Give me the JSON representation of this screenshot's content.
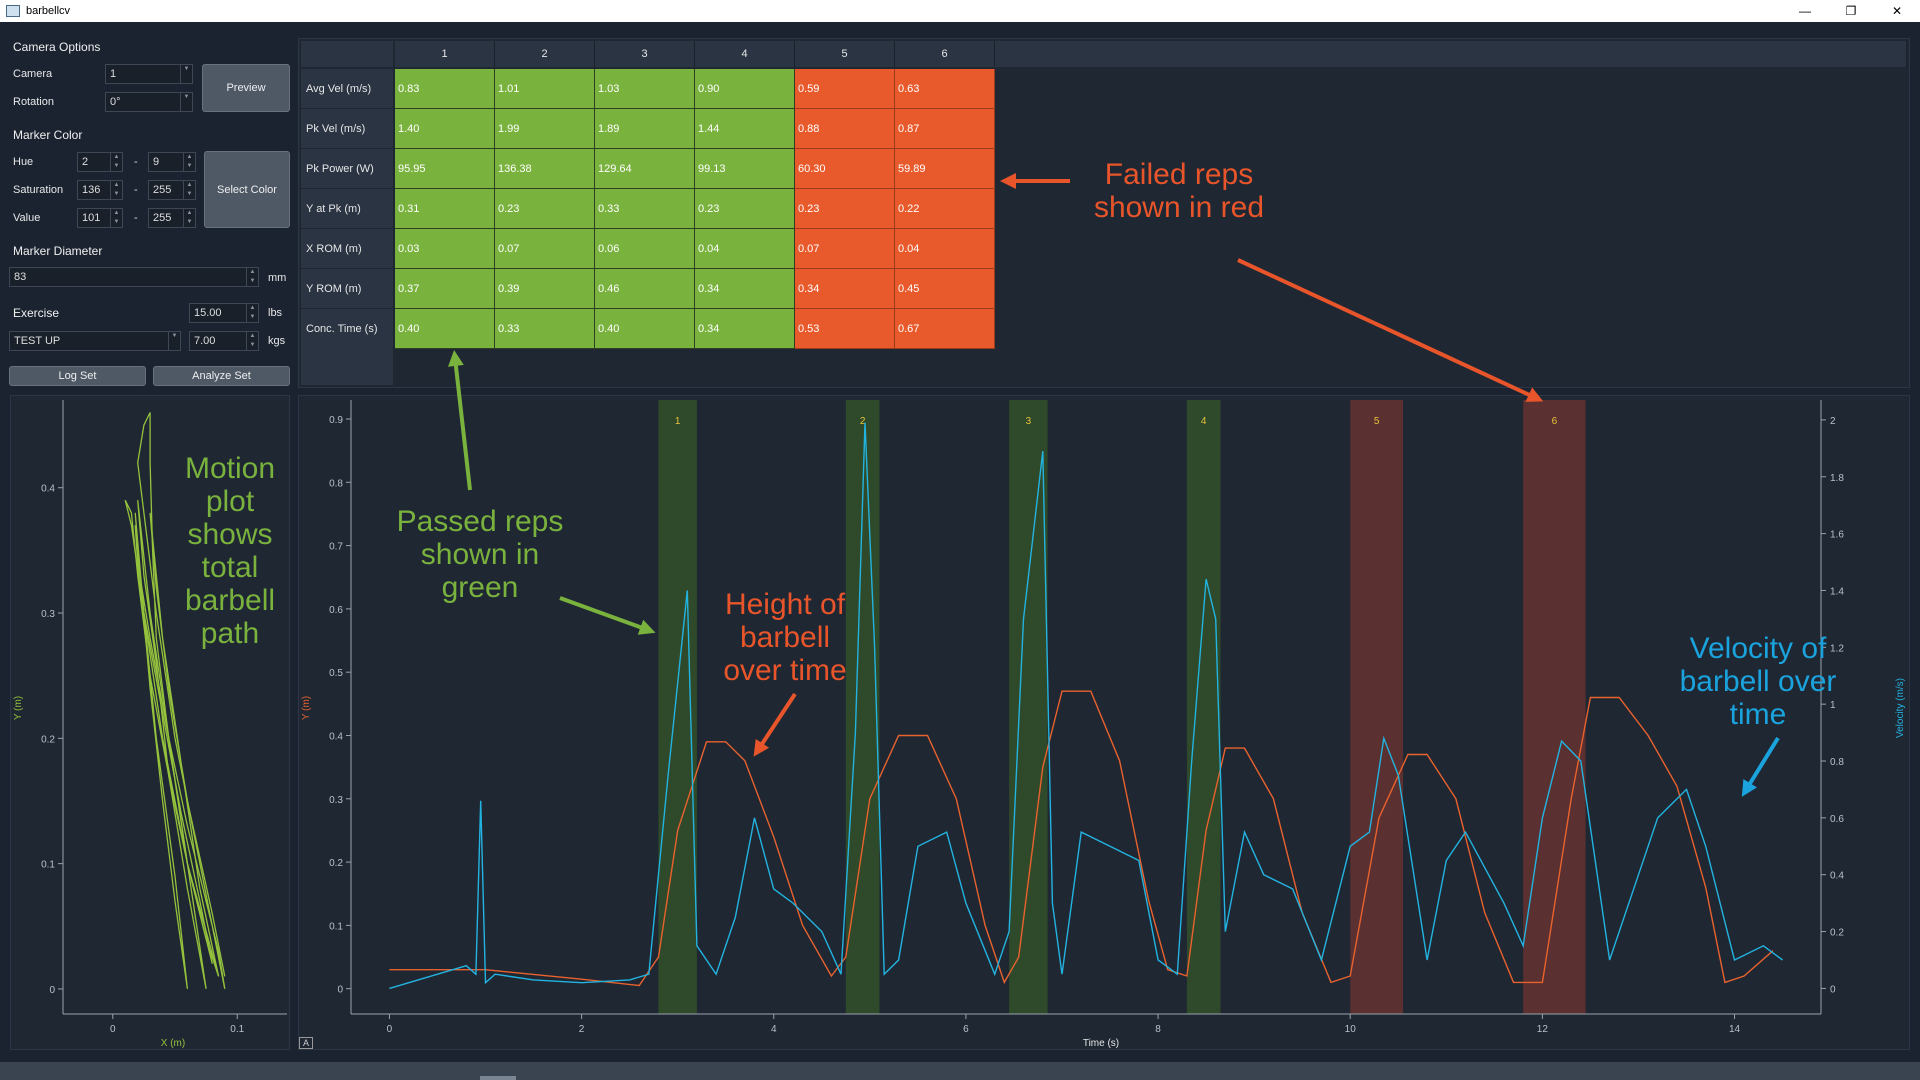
{
  "window": {
    "title": "barbellcv",
    "controls": [
      "—",
      "❐",
      "✕"
    ]
  },
  "camera_options": {
    "section": "Camera Options",
    "camera_label": "Camera",
    "camera_value": "1",
    "rotation_label": "Rotation",
    "rotation_value": "0°",
    "preview_button": "Preview"
  },
  "marker_color": {
    "section": "Marker Color",
    "hue_label": "Hue",
    "hue_min": "2",
    "hue_max": "9",
    "saturation_label": "Saturation",
    "sat_min": "136",
    "sat_max": "255",
    "value_label": "Value",
    "val_min": "101",
    "val_max": "255",
    "dash": "-",
    "select_button": "Select Color"
  },
  "marker_diameter": {
    "section": "Marker Diameter",
    "value": "83",
    "unit": "mm"
  },
  "exercise": {
    "section": "Exercise",
    "selected": "TEST UP",
    "lbs_value": "15.00",
    "lbs_unit": "lbs",
    "kgs_value": "7.00",
    "kgs_unit": "kgs"
  },
  "actions": {
    "log_set": "Log Set",
    "analyze_set": "Analyze Set"
  },
  "rep_table": {
    "columns": [
      "1",
      "2",
      "3",
      "4",
      "5",
      "6"
    ],
    "status": [
      "pass",
      "pass",
      "pass",
      "pass",
      "fail",
      "fail"
    ],
    "rows": [
      {
        "label": "Avg Vel (m/s)",
        "values": [
          "0.83",
          "1.01",
          "1.03",
          "0.90",
          "0.59",
          "0.63"
        ]
      },
      {
        "label": "Pk Vel (m/s)",
        "values": [
          "1.40",
          "1.99",
          "1.89",
          "1.44",
          "0.88",
          "0.87"
        ]
      },
      {
        "label": "Pk Power (W)",
        "values": [
          "95.95",
          "136.38",
          "129.64",
          "99.13",
          "60.30",
          "59.89"
        ]
      },
      {
        "label": "Y at Pk (m)",
        "values": [
          "0.31",
          "0.23",
          "0.33",
          "0.23",
          "0.23",
          "0.22"
        ]
      },
      {
        "label": "X ROM (m)",
        "values": [
          "0.03",
          "0.07",
          "0.06",
          "0.04",
          "0.07",
          "0.04"
        ]
      },
      {
        "label": "Y ROM (m)",
        "values": [
          "0.37",
          "0.39",
          "0.46",
          "0.34",
          "0.34",
          "0.45"
        ]
      },
      {
        "label": "Conc. Time (s)",
        "values": [
          "0.40",
          "0.33",
          "0.40",
          "0.34",
          "0.53",
          "0.67"
        ]
      }
    ]
  },
  "colors": {
    "pass": "#7ab23e",
    "fail": "#e85a2c",
    "height_line": "#e8622e",
    "velocity_line": "#23b3e0",
    "motion_line": "#94c23c",
    "pass_band": "#2f4a2a",
    "fail_band": "#5a3030",
    "rep_label": "#e8c23c",
    "anno_green": "#7ab23e",
    "anno_red": "#e8552a",
    "anno_blue": "#1aa3dc"
  },
  "annotations": {
    "failed": "Failed reps shown in red",
    "passed": "Passed reps shown in green",
    "height": "Height of barbell over time",
    "velocity": "Velocity of barbell over time",
    "motion": "Motion plot shows total barbell path"
  },
  "chart_data": [
    {
      "type": "line",
      "name": "motion-plot",
      "xlabel": "X (m)",
      "ylabel": "Y (m)",
      "xlim": [
        -0.04,
        0.14
      ],
      "ylim": [
        -0.02,
        0.47
      ],
      "xticks": [
        0,
        0.1
      ],
      "yticks": [
        0,
        0.1,
        0.2,
        0.3,
        0.4
      ],
      "series": [
        {
          "x": [
            0.09,
            0.07,
            0.05,
            0.035,
            0.025,
            0.02,
            0.025,
            0.03,
            0.03,
            0.032,
            0.035,
            0.045,
            0.06,
            0.075,
            0.085,
            0.09
          ],
          "y": [
            0.0,
            0.1,
            0.2,
            0.3,
            0.38,
            0.42,
            0.45,
            0.46,
            0.42,
            0.35,
            0.28,
            0.2,
            0.13,
            0.07,
            0.03,
            0.0
          ]
        },
        {
          "x": [
            0.085,
            0.06,
            0.04,
            0.025,
            0.015,
            0.01,
            0.015,
            0.02,
            0.03,
            0.045,
            0.06,
            0.075,
            0.085
          ],
          "y": [
            0.01,
            0.1,
            0.2,
            0.3,
            0.37,
            0.39,
            0.38,
            0.33,
            0.25,
            0.17,
            0.1,
            0.04,
            0.01
          ]
        },
        {
          "x": [
            0.08,
            0.06,
            0.045,
            0.03,
            0.02,
            0.018,
            0.025,
            0.04,
            0.055,
            0.07,
            0.08
          ],
          "y": [
            0.02,
            0.1,
            0.2,
            0.28,
            0.34,
            0.37,
            0.3,
            0.22,
            0.14,
            0.07,
            0.02
          ]
        },
        {
          "x": [
            0.075,
            0.06,
            0.045,
            0.035,
            0.025,
            0.02,
            0.03,
            0.045,
            0.06,
            0.075
          ],
          "y": [
            0.0,
            0.08,
            0.17,
            0.26,
            0.33,
            0.39,
            0.3,
            0.2,
            0.1,
            0.0
          ]
        },
        {
          "x": [
            0.09,
            0.08,
            0.06,
            0.045,
            0.035,
            0.03,
            0.04,
            0.055,
            0.07,
            0.085
          ],
          "y": [
            0.01,
            0.06,
            0.15,
            0.24,
            0.32,
            0.38,
            0.28,
            0.18,
            0.08,
            0.01
          ]
        },
        {
          "x": [
            0.06,
            0.05,
            0.04,
            0.03,
            0.022,
            0.018,
            0.025,
            0.035,
            0.05,
            0.06
          ],
          "y": [
            0.0,
            0.07,
            0.15,
            0.24,
            0.33,
            0.38,
            0.3,
            0.2,
            0.09,
            0.0
          ]
        }
      ]
    },
    {
      "type": "line",
      "name": "height-velocity-plot",
      "xlabel": "Time (s)",
      "ylabel": "Y (m)",
      "y2label": "Velocity (m/s)",
      "xlim": [
        -0.4,
        14.9
      ],
      "ylim": [
        -0.04,
        0.93
      ],
      "y2lim": [
        -0.09,
        2.07
      ],
      "xticks": [
        0,
        2,
        4,
        6,
        8,
        10,
        12,
        14
      ],
      "yticks": [
        0,
        0.1,
        0.2,
        0.3,
        0.4,
        0.5,
        0.6,
        0.7,
        0.8,
        0.9
      ],
      "y2ticks": [
        0,
        0.2,
        0.4,
        0.6,
        0.8,
        1,
        1.2,
        1.4,
        1.6,
        1.8,
        2
      ],
      "reps": [
        {
          "label": "1",
          "start": 2.8,
          "end": 3.2,
          "status": "pass"
        },
        {
          "label": "2",
          "start": 4.75,
          "end": 5.1,
          "status": "pass"
        },
        {
          "label": "3",
          "start": 6.45,
          "end": 6.85,
          "status": "pass"
        },
        {
          "label": "4",
          "start": 8.3,
          "end": 8.65,
          "status": "pass"
        },
        {
          "label": "5",
          "start": 10.0,
          "end": 10.55,
          "status": "fail"
        },
        {
          "label": "6",
          "start": 11.8,
          "end": 12.45,
          "status": "fail"
        }
      ],
      "series": [
        {
          "axis": "left",
          "x": [
            0,
            1,
            2,
            2.6,
            2.8,
            3.0,
            3.3,
            3.5,
            3.7,
            4.0,
            4.3,
            4.6,
            4.75,
            5.0,
            5.3,
            5.6,
            5.9,
            6.2,
            6.4,
            6.55,
            6.8,
            7.0,
            7.3,
            7.6,
            7.9,
            8.1,
            8.3,
            8.5,
            8.7,
            8.9,
            9.2,
            9.5,
            9.8,
            10.0,
            10.3,
            10.6,
            10.8,
            11.1,
            11.4,
            11.7,
            12.0,
            12.3,
            12.5,
            12.8,
            13.1,
            13.4,
            13.7,
            13.9,
            14.1,
            14.4
          ],
          "y": [
            0.03,
            0.03,
            0.015,
            0.005,
            0.05,
            0.25,
            0.39,
            0.39,
            0.36,
            0.24,
            0.1,
            0.02,
            0.05,
            0.3,
            0.4,
            0.4,
            0.3,
            0.1,
            0.01,
            0.05,
            0.35,
            0.47,
            0.47,
            0.36,
            0.14,
            0.03,
            0.02,
            0.25,
            0.38,
            0.38,
            0.3,
            0.12,
            0.01,
            0.02,
            0.27,
            0.37,
            0.37,
            0.3,
            0.12,
            0.01,
            0.01,
            0.3,
            0.46,
            0.46,
            0.4,
            0.32,
            0.16,
            0.01,
            0.02,
            0.06
          ]
        },
        {
          "axis": "right",
          "x": [
            0,
            0.5,
            0.8,
            0.9,
            0.95,
            1.0,
            1.1,
            1.5,
            2.0,
            2.5,
            2.7,
            2.9,
            3.1,
            3.2,
            3.4,
            3.6,
            3.8,
            4.0,
            4.2,
            4.5,
            4.7,
            4.85,
            4.95,
            5.05,
            5.15,
            5.3,
            5.5,
            5.8,
            6.0,
            6.3,
            6.45,
            6.6,
            6.8,
            6.9,
            7.0,
            7.2,
            7.5,
            7.8,
            8.0,
            8.2,
            8.35,
            8.5,
            8.6,
            8.7,
            8.9,
            9.1,
            9.4,
            9.7,
            10.0,
            10.2,
            10.35,
            10.5,
            10.8,
            11.0,
            11.2,
            11.6,
            11.8,
            12.0,
            12.2,
            12.4,
            12.7,
            13.0,
            13.2,
            13.5,
            13.7,
            14.0,
            14.3,
            14.5
          ],
          "y": [
            0.0,
            0.05,
            0.08,
            0.05,
            0.66,
            0.02,
            0.05,
            0.03,
            0.02,
            0.03,
            0.05,
            0.75,
            1.4,
            0.15,
            0.05,
            0.25,
            0.6,
            0.35,
            0.3,
            0.2,
            0.05,
            0.9,
            1.99,
            1.2,
            0.05,
            0.1,
            0.5,
            0.55,
            0.3,
            0.05,
            0.2,
            1.3,
            1.89,
            0.3,
            0.05,
            0.55,
            0.5,
            0.45,
            0.1,
            0.05,
            0.8,
            1.44,
            1.3,
            0.2,
            0.55,
            0.4,
            0.35,
            0.1,
            0.5,
            0.55,
            0.88,
            0.75,
            0.1,
            0.45,
            0.55,
            0.3,
            0.15,
            0.6,
            0.87,
            0.8,
            0.1,
            0.4,
            0.6,
            0.7,
            0.5,
            0.1,
            0.15,
            0.1
          ]
        }
      ]
    }
  ]
}
